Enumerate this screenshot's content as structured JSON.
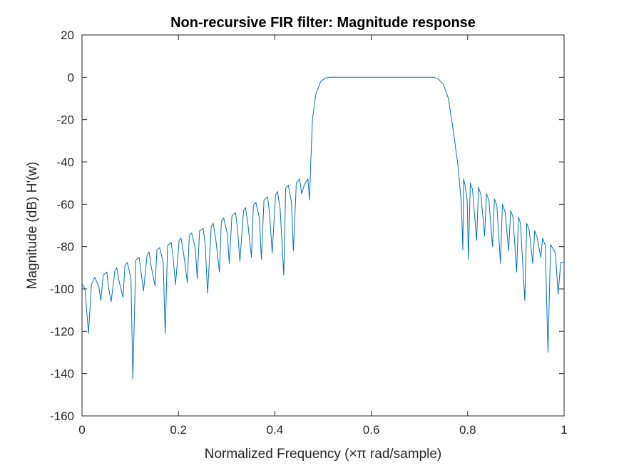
{
  "chart_data": {
    "type": "line",
    "title": "Non-recursive FIR filter: Magnitude response",
    "xlabel": "Normalized Frequency (×π rad/sample)",
    "ylabel": "Magnitude (dB) H'(w)",
    "xlim": [
      0,
      1
    ],
    "ylim": [
      -160,
      20
    ],
    "xticks": [
      0,
      0.2,
      0.4,
      0.6,
      0.8,
      1
    ],
    "xtick_labels": [
      "0",
      "0.2",
      "0.4",
      "0.6",
      "0.8",
      "1"
    ],
    "yticks": [
      20,
      0,
      -20,
      -40,
      -60,
      -80,
      -100,
      -120,
      -140,
      -160
    ],
    "ytick_labels": [
      "20",
      "0",
      "-20",
      "-40",
      "-60",
      "-80",
      "-100",
      "-120",
      "-140",
      "-160"
    ],
    "grid": false,
    "box": true,
    "line_color": "#0072BD",
    "series": [
      {
        "x": [
          0.0,
          0.006,
          0.0135,
          0.0195,
          0.0265,
          0.035,
          0.039,
          0.044,
          0.0515,
          0.0555,
          0.0605,
          0.068,
          0.072,
          0.0775,
          0.085,
          0.089,
          0.094,
          0.1015,
          0.1055,
          0.1115,
          0.1185,
          0.1225,
          0.1275,
          0.135,
          0.139,
          0.144,
          0.1515,
          0.1555,
          0.161,
          0.1685,
          0.1725,
          0.1775,
          0.185,
          0.189,
          0.194,
          0.2015,
          0.2055,
          0.211,
          0.2185,
          0.2225,
          0.2275,
          0.235,
          0.239,
          0.244,
          0.2515,
          0.2555,
          0.2605,
          0.268,
          0.272,
          0.2775,
          0.285,
          0.289,
          0.294,
          0.3015,
          0.3055,
          0.311,
          0.3185,
          0.3225,
          0.3275,
          0.335,
          0.339,
          0.344,
          0.3515,
          0.3555,
          0.3605,
          0.368,
          0.372,
          0.3775,
          0.385,
          0.389,
          0.3945,
          0.4015,
          0.4055,
          0.411,
          0.4185,
          0.4225,
          0.428,
          0.4345,
          0.4385,
          0.4445,
          0.4515,
          0.4555,
          0.461,
          0.4685,
          0.472,
          0.4745,
          0.478,
          0.485,
          0.495,
          0.505,
          0.515,
          0.525,
          0.535,
          0.55,
          0.6,
          0.65,
          0.7,
          0.72,
          0.73,
          0.74,
          0.75,
          0.76,
          0.77,
          0.78,
          0.787,
          0.79,
          0.7915,
          0.7945,
          0.799,
          0.8015,
          0.8055,
          0.81,
          0.8185,
          0.8225,
          0.8275,
          0.835,
          0.839,
          0.844,
          0.8515,
          0.8555,
          0.8605,
          0.868,
          0.872,
          0.8775,
          0.885,
          0.889,
          0.894,
          0.9015,
          0.9055,
          0.9095,
          0.9185,
          0.9225,
          0.9275,
          0.935,
          0.939,
          0.944,
          0.9515,
          0.9555,
          0.961,
          0.9665,
          0.972,
          0.982,
          0.9875,
          0.993,
          1.0
        ],
        "y": [
          -97.5,
          -100,
          -121,
          -98,
          -94.5,
          -99,
          -105.5,
          -93.5,
          -92,
          -100,
          -106,
          -91.5,
          -90,
          -97,
          -104,
          -89,
          -87.5,
          -95,
          -142.5,
          -86.5,
          -85,
          -92,
          -101,
          -84,
          -82.5,
          -90,
          -98.5,
          -81.5,
          -80.5,
          -87.5,
          -121,
          -79.5,
          -78,
          -85.5,
          -98,
          -77,
          -76,
          -83.5,
          -97,
          -75,
          -73.5,
          -81,
          -95,
          -72.5,
          -71.5,
          -79,
          -102,
          -70.5,
          -69,
          -76.5,
          -92,
          -68,
          -66.5,
          -74,
          -88,
          -65.5,
          -64,
          -71.5,
          -87,
          -63,
          -61.5,
          -69,
          -85,
          -60.5,
          -59,
          -66.5,
          -86,
          -58,
          -56.5,
          -64.5,
          -83,
          -55.5,
          -54,
          -62,
          -93.5,
          -52.5,
          -51,
          -59,
          -82,
          -50,
          -48,
          -55,
          -51,
          -48,
          -58,
          -40,
          -20,
          -8,
          -2,
          -0.3,
          0,
          0,
          0,
          0,
          0,
          0,
          0,
          0,
          0,
          -1,
          -3.5,
          -10,
          -25,
          -42,
          -60,
          -81.5,
          -48,
          -51,
          -58,
          -86,
          -50,
          -53,
          -77,
          -52,
          -55.5,
          -75,
          -55,
          -58,
          -80,
          -57.5,
          -60.5,
          -88,
          -60,
          -63.5,
          -82,
          -63,
          -66,
          -92,
          -66,
          -69,
          -105.5,
          -69,
          -72,
          -88,
          -72.5,
          -75.5,
          -85,
          -76,
          -79.5,
          -130,
          -79,
          -83,
          -102.5,
          -87.5,
          -87.5
        ]
      }
    ]
  }
}
